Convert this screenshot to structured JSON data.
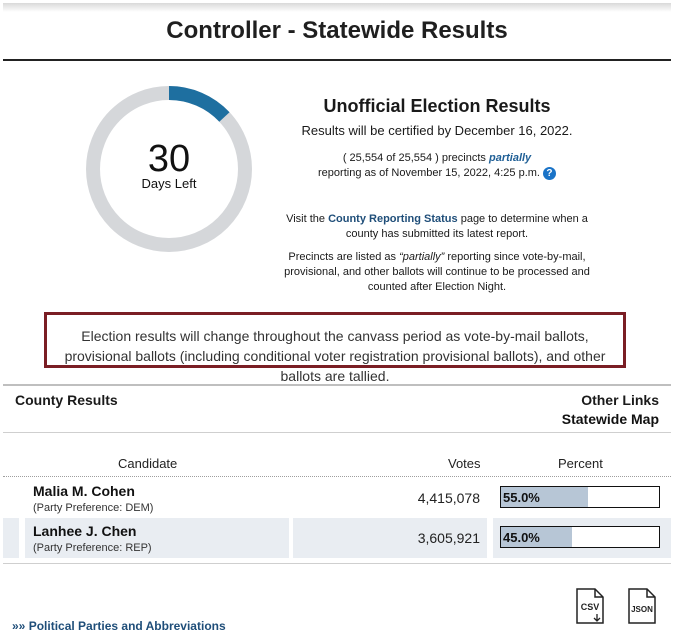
{
  "header": {
    "title": "Controller - Statewide Results"
  },
  "countdown": {
    "days": "30",
    "days_label": "Days Left",
    "progress_fraction": 0.13,
    "colors": {
      "track": "#d5d7da",
      "progress": "#1e6fa0"
    }
  },
  "info": {
    "title": "Unofficial Election Results",
    "certified": "Results will be certified by December 16, 2022.",
    "precincts_prefix": "( 25,554 of 25,554 ) precincts",
    "precincts_partial": "partially",
    "reporting_asof": "reporting as of November 15, 2022, 4:25 p.m.",
    "help_icon": "question-circle-icon",
    "visit_prefix": "Visit the",
    "visit_link": "County Reporting Status",
    "visit_suffix": "page to determine when a county has submitted its latest report.",
    "partial_prefix": "Precincts are listed as",
    "partial_quote": "“partially”",
    "partial_suffix": "reporting since vote-by-mail, provisional, and other ballots will continue to be processed and counted after Election Night."
  },
  "notice": {
    "text": "Election results will change throughout the canvass period as vote-by-mail ballots, provisional ballots (including conditional voter registration provisional ballots), and other ballots are tallied.",
    "border_color": "#7a1e24"
  },
  "section": {
    "county_results": "County Results",
    "other_links": "Other Links",
    "statewide_map": "Statewide Map"
  },
  "table": {
    "headers": {
      "candidate": "Candidate",
      "votes": "Votes",
      "percent": "Percent"
    },
    "rows": [
      {
        "name": "Malia M. Cohen",
        "party": "(Party Preference: DEM)",
        "votes": "4,415,078",
        "percent": "55.0%",
        "fraction": 0.55
      },
      {
        "name": "Lanhee J. Chen",
        "party": "(Party Preference: REP)",
        "votes": "3,605,921",
        "percent": "45.0%",
        "fraction": 0.45
      }
    ]
  },
  "downloads": {
    "csv_label": "CSV",
    "json_label": "JSON"
  },
  "footer": {
    "prefix": "»»",
    "link": "Political Parties and Abbreviations"
  }
}
